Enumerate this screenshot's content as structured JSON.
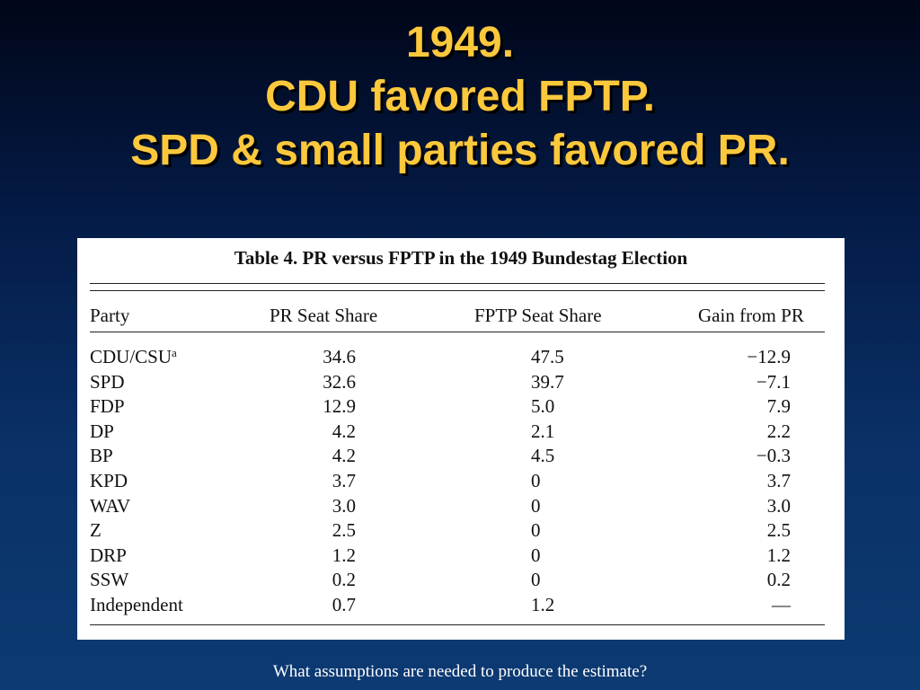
{
  "slide": {
    "title_lines": [
      "1949.",
      "CDU favored FPTP.",
      "SPD & small parties favored PR."
    ],
    "caption": "What assumptions are needed to produce the estimate?"
  },
  "table": {
    "title": "Table 4. PR versus FPTP in the 1949 Bundestag Election",
    "headers": {
      "party": "Party",
      "pr": "PR Seat Share",
      "fptp": "FPTP Seat Share",
      "gain": "Gain from PR"
    },
    "rows": [
      {
        "party": "CDU/CSU",
        "sup": "a",
        "pr": "34.6",
        "fptp": "47.5",
        "gain": "−12.9"
      },
      {
        "party": "SPD",
        "sup": "",
        "pr": "32.6",
        "fptp": "39.7",
        "gain": "−7.1"
      },
      {
        "party": "FDP",
        "sup": "",
        "pr": "12.9",
        "fptp": "5.0",
        "gain": "7.9"
      },
      {
        "party": "DP",
        "sup": "",
        "pr": "4.2",
        "fptp": "2.1",
        "gain": "2.2"
      },
      {
        "party": "BP",
        "sup": "",
        "pr": "4.2",
        "fptp": "4.5",
        "gain": "−0.3"
      },
      {
        "party": "KPD",
        "sup": "",
        "pr": "3.7",
        "fptp": "0",
        "gain": "3.7"
      },
      {
        "party": "WAV",
        "sup": "",
        "pr": "3.0",
        "fptp": "0",
        "gain": "3.0"
      },
      {
        "party": "Z",
        "sup": "",
        "pr": "2.5",
        "fptp": "0",
        "gain": "2.5"
      },
      {
        "party": "DRP",
        "sup": "",
        "pr": "1.2",
        "fptp": "0",
        "gain": "1.2"
      },
      {
        "party": "SSW",
        "sup": "",
        "pr": "0.2",
        "fptp": "0",
        "gain": "0.2"
      },
      {
        "party": "Independent",
        "sup": "",
        "pr": "0.7",
        "fptp": "1.2",
        "gain": "—"
      }
    ]
  },
  "colors": {
    "title": "#fcc83c",
    "background_top": "#000618",
    "background_bottom": "#0d3a73"
  }
}
